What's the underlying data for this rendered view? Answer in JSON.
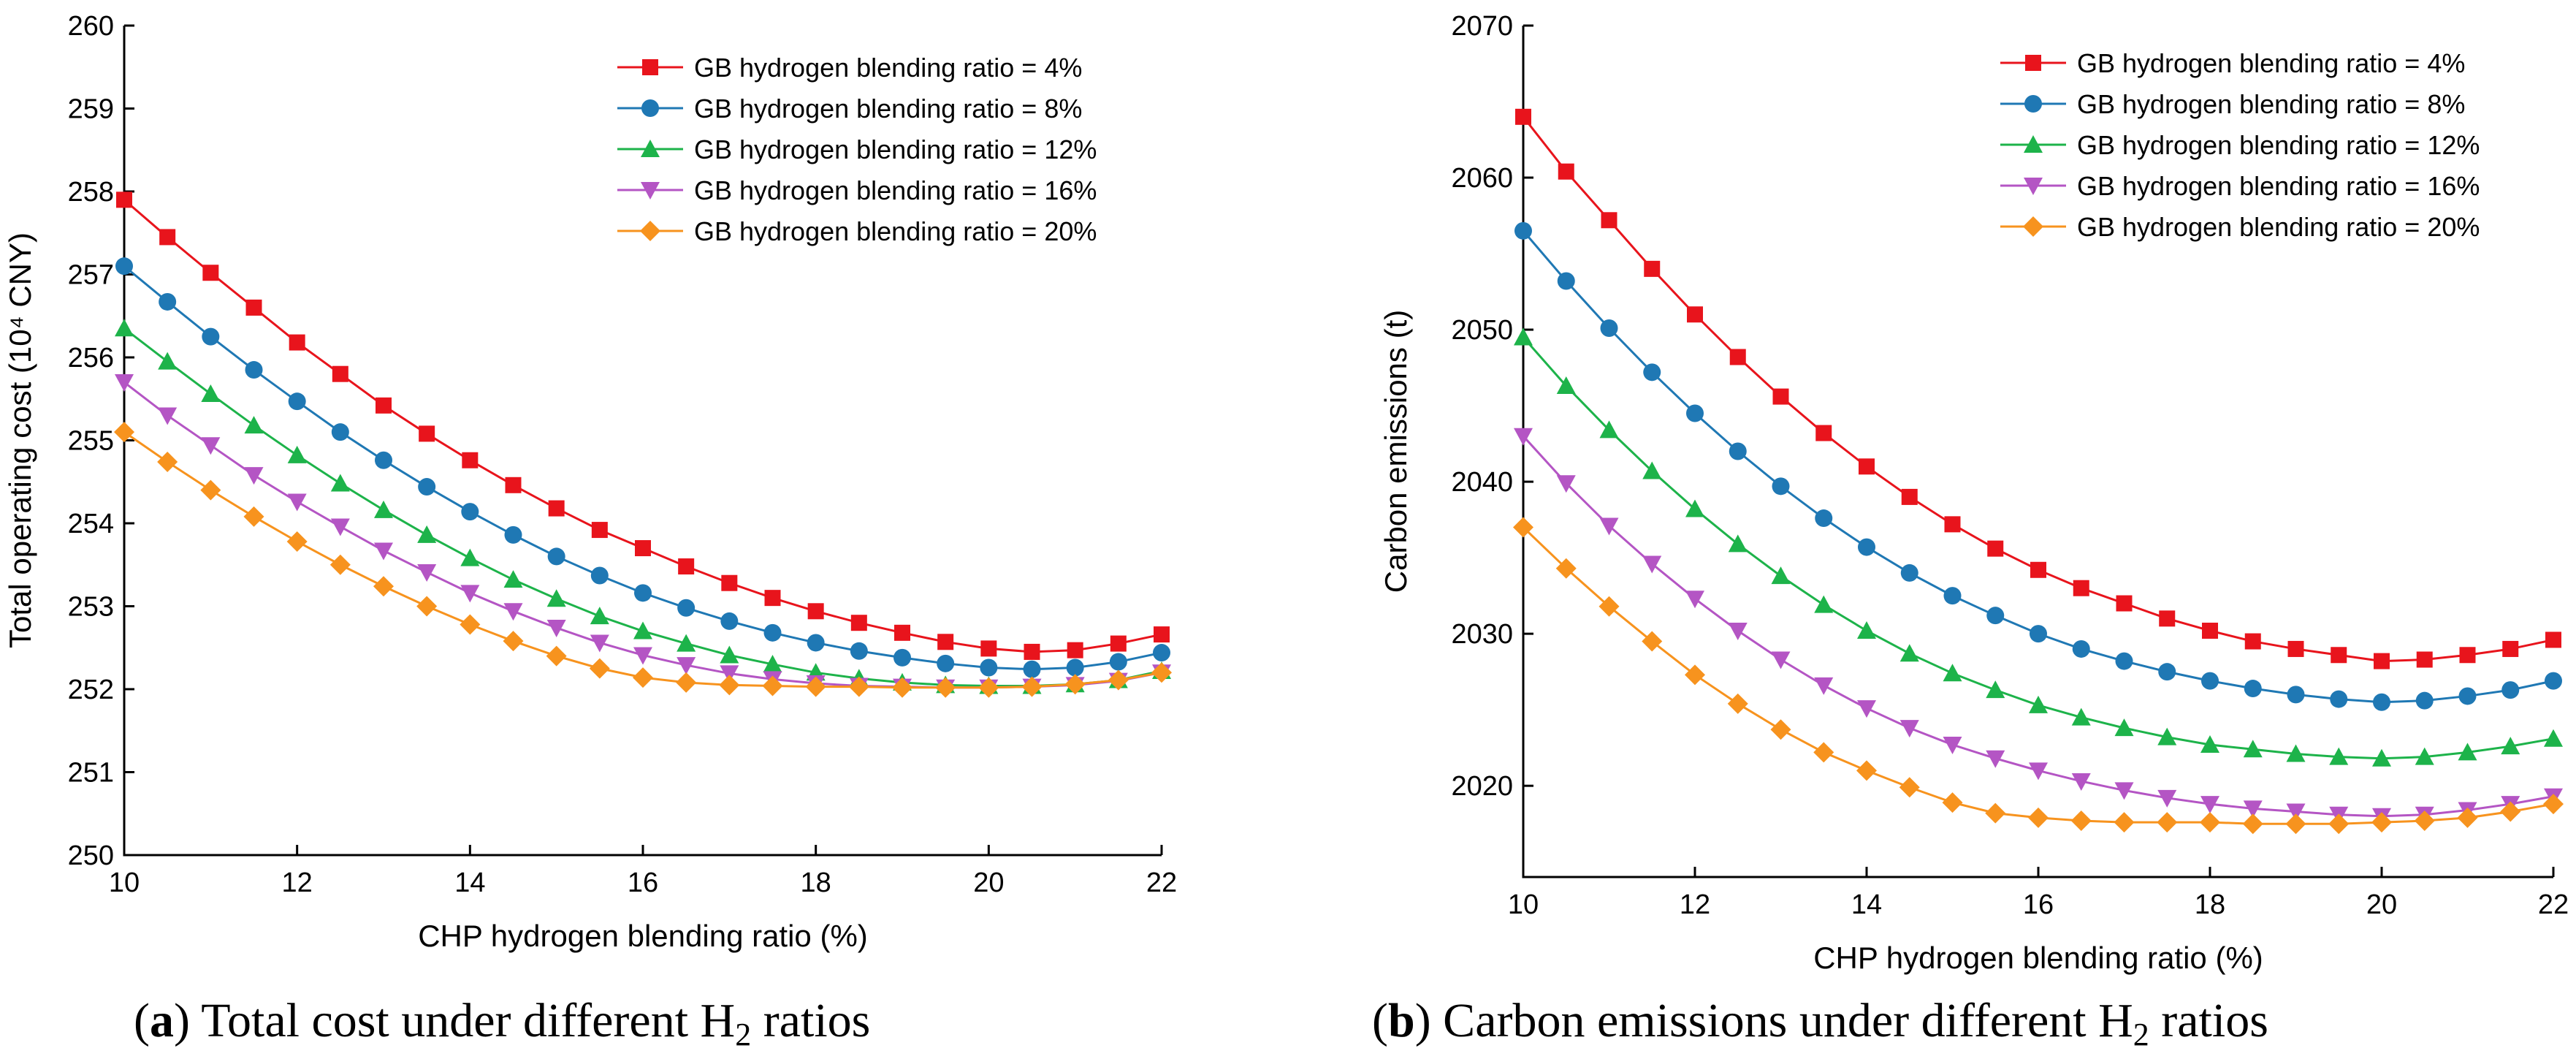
{
  "chart_data": [
    {
      "type": "line",
      "caption": {
        "label": "a",
        "text_before_sub": "Total cost under different H",
        "sub": "2",
        "text_after_sub": " ratios"
      },
      "xlabel": "CHP hydrogen blending ratio (%)",
      "ylabel": "Total operating cost (10⁴ CNY)",
      "xlim": [
        10,
        22
      ],
      "ylim": [
        250,
        260
      ],
      "xticks": [
        10,
        12,
        14,
        16,
        18,
        20,
        22
      ],
      "yticks": [
        250,
        251,
        252,
        253,
        254,
        255,
        256,
        257,
        258,
        259,
        260
      ],
      "legend_position": "top-right",
      "x": [
        10,
        10.5,
        11,
        11.5,
        12,
        12.5,
        13,
        13.5,
        14,
        14.5,
        15,
        15.5,
        16,
        16.5,
        17,
        17.5,
        18,
        18.5,
        19,
        19.5,
        20,
        20.5,
        21,
        21.5,
        22
      ],
      "series": [
        {
          "name": "GB hydrogen blending ratio = 4%",
          "color": "#e8141c",
          "marker": "square",
          "values": [
            257.9,
            257.45,
            257.02,
            256.6,
            256.18,
            255.8,
            255.42,
            255.08,
            254.76,
            254.46,
            254.18,
            253.92,
            253.7,
            253.48,
            253.28,
            253.1,
            252.94,
            252.8,
            252.68,
            252.57,
            252.49,
            252.45,
            252.47,
            252.55,
            252.66
          ]
        },
        {
          "name": "GB hydrogen blending ratio = 8%",
          "color": "#1f78b4",
          "marker": "circle",
          "values": [
            257.1,
            256.67,
            256.25,
            255.85,
            255.47,
            255.1,
            254.76,
            254.44,
            254.14,
            253.86,
            253.6,
            253.37,
            253.16,
            252.98,
            252.82,
            252.68,
            252.56,
            252.46,
            252.38,
            252.31,
            252.26,
            252.24,
            252.26,
            252.33,
            252.44
          ]
        },
        {
          "name": "GB hydrogen blending ratio = 12%",
          "color": "#1db34a",
          "marker": "triangle-up",
          "values": [
            256.35,
            255.95,
            255.56,
            255.18,
            254.82,
            254.48,
            254.16,
            253.86,
            253.58,
            253.32,
            253.09,
            252.88,
            252.7,
            252.55,
            252.41,
            252.3,
            252.2,
            252.13,
            252.08,
            252.05,
            252.04,
            252.04,
            252.06,
            252.11,
            252.22
          ]
        },
        {
          "name": "GB hydrogen blending ratio = 16%",
          "color": "#b455c4",
          "marker": "triangle-down",
          "values": [
            255.7,
            255.3,
            254.94,
            254.58,
            254.26,
            253.96,
            253.67,
            253.41,
            253.16,
            252.94,
            252.74,
            252.56,
            252.41,
            252.29,
            252.19,
            252.12,
            252.07,
            252.04,
            252.03,
            252.02,
            252.02,
            252.03,
            252.05,
            252.1,
            252.2
          ]
        },
        {
          "name": "GB hydrogen blending ratio = 20%",
          "color": "#f7931e",
          "marker": "diamond",
          "values": [
            255.1,
            254.74,
            254.4,
            254.08,
            253.78,
            253.5,
            253.24,
            253.0,
            252.78,
            252.58,
            252.4,
            252.25,
            252.14,
            252.08,
            252.05,
            252.04,
            252.03,
            252.03,
            252.02,
            252.02,
            252.02,
            252.03,
            252.06,
            252.11,
            252.2
          ]
        }
      ]
    },
    {
      "type": "line",
      "caption": {
        "label": "b",
        "text_before_sub": "Carbon emissions under different H",
        "sub": "2",
        "text_after_sub": " ratios"
      },
      "xlabel": "CHP hydrogen blending ratio (%)",
      "ylabel": "Carbon emissions (t)",
      "xlim": [
        10,
        22
      ],
      "ylim": [
        2014,
        2070
      ],
      "xticks": [
        10,
        12,
        14,
        16,
        18,
        20,
        22
      ],
      "yticks": [
        2020,
        2030,
        2040,
        2050,
        2060,
        2070
      ],
      "legend_position": "top-right",
      "x": [
        10,
        10.5,
        11,
        11.5,
        12,
        12.5,
        13,
        13.5,
        14,
        14.5,
        15,
        15.5,
        16,
        16.5,
        17,
        17.5,
        18,
        18.5,
        19,
        19.5,
        20,
        20.5,
        21,
        21.5,
        22
      ],
      "series": [
        {
          "name": "GB hydrogen blending ratio = 4%",
          "color": "#e8141c",
          "marker": "square",
          "values": [
            2064.0,
            2060.4,
            2057.2,
            2054.0,
            2051.0,
            2048.2,
            2045.6,
            2043.2,
            2041.0,
            2039.0,
            2037.2,
            2035.6,
            2034.2,
            2033.0,
            2032.0,
            2031.0,
            2030.2,
            2029.5,
            2029.0,
            2028.6,
            2028.2,
            2028.3,
            2028.6,
            2029.0,
            2029.6
          ]
        },
        {
          "name": "GB hydrogen blending ratio = 8%",
          "color": "#1f78b4",
          "marker": "circle",
          "values": [
            2056.5,
            2053.2,
            2050.1,
            2047.2,
            2044.5,
            2042.0,
            2039.7,
            2037.6,
            2035.7,
            2034.0,
            2032.5,
            2031.2,
            2030.0,
            2029.0,
            2028.2,
            2027.5,
            2026.9,
            2026.4,
            2026.0,
            2025.7,
            2025.5,
            2025.6,
            2025.9,
            2026.3,
            2026.9
          ]
        },
        {
          "name": "GB hydrogen blending ratio = 12%",
          "color": "#1db34a",
          "marker": "triangle-up",
          "values": [
            2049.5,
            2046.3,
            2043.4,
            2040.7,
            2038.2,
            2035.9,
            2033.8,
            2031.9,
            2030.2,
            2028.7,
            2027.4,
            2026.3,
            2025.3,
            2024.5,
            2023.8,
            2023.2,
            2022.7,
            2022.4,
            2022.1,
            2021.9,
            2021.8,
            2021.9,
            2022.2,
            2022.6,
            2023.1
          ]
        },
        {
          "name": "GB hydrogen blending ratio = 16%",
          "color": "#b455c4",
          "marker": "triangle-down",
          "values": [
            2043.0,
            2039.9,
            2037.1,
            2034.6,
            2032.3,
            2030.2,
            2028.3,
            2026.6,
            2025.1,
            2023.8,
            2022.7,
            2021.8,
            2021.0,
            2020.3,
            2019.7,
            2019.2,
            2018.8,
            2018.5,
            2018.3,
            2018.1,
            2018.0,
            2018.1,
            2018.4,
            2018.8,
            2019.3
          ]
        },
        {
          "name": "GB hydrogen blending ratio = 20%",
          "color": "#f7931e",
          "marker": "diamond",
          "values": [
            2037.0,
            2034.3,
            2031.8,
            2029.5,
            2027.3,
            2025.4,
            2023.7,
            2022.2,
            2021.0,
            2019.9,
            2018.9,
            2018.2,
            2017.9,
            2017.7,
            2017.6,
            2017.6,
            2017.6,
            2017.5,
            2017.5,
            2017.5,
            2017.6,
            2017.7,
            2017.9,
            2018.3,
            2018.8
          ]
        }
      ]
    }
  ]
}
